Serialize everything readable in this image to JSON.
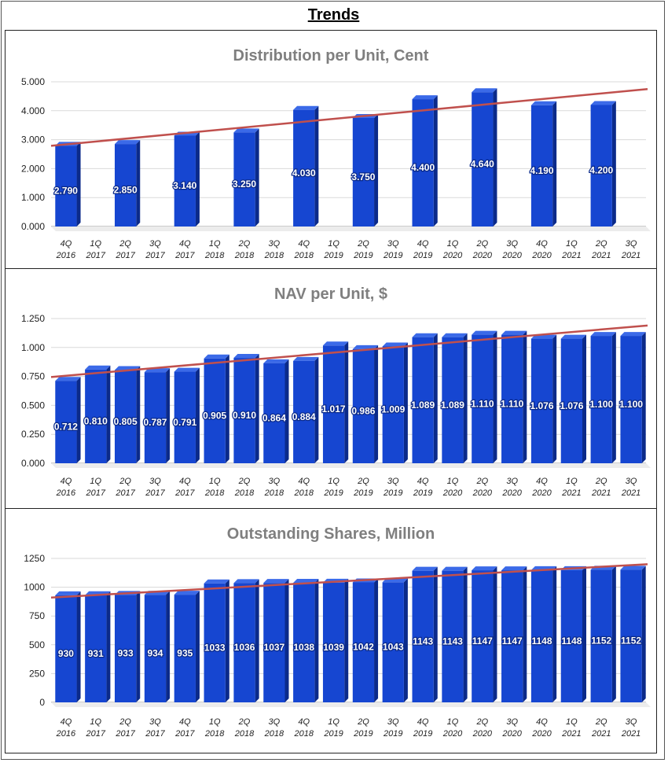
{
  "page": {
    "title": "Trends"
  },
  "chart_data": [
    {
      "type": "bar",
      "title": "Distribution per Unit, Cent",
      "categories": [
        [
          "4Q",
          "2016"
        ],
        [
          "1Q",
          "2017"
        ],
        [
          "2Q",
          "2017"
        ],
        [
          "3Q",
          "2017"
        ],
        [
          "4Q",
          "2017"
        ],
        [
          "1Q",
          "2018"
        ],
        [
          "2Q",
          "2018"
        ],
        [
          "3Q",
          "2018"
        ],
        [
          "4Q",
          "2018"
        ],
        [
          "1Q",
          "2019"
        ],
        [
          "2Q",
          "2019"
        ],
        [
          "3Q",
          "2019"
        ],
        [
          "4Q",
          "2019"
        ],
        [
          "1Q",
          "2020"
        ],
        [
          "2Q",
          "2020"
        ],
        [
          "3Q",
          "2020"
        ],
        [
          "4Q",
          "2020"
        ],
        [
          "1Q",
          "2021"
        ],
        [
          "2Q",
          "2021"
        ],
        [
          "3Q",
          "2021"
        ]
      ],
      "values": [
        2.79,
        null,
        2.85,
        null,
        3.14,
        null,
        3.25,
        null,
        4.03,
        null,
        3.75,
        null,
        4.4,
        null,
        4.64,
        null,
        4.19,
        null,
        4.2,
        null
      ],
      "data_labels": [
        "2.790",
        "",
        "2.850",
        "",
        "3.140",
        "",
        "3.250",
        "",
        "4.030",
        "",
        "3.750",
        "",
        "4.400",
        "",
        "4.640",
        "",
        "4.190",
        "",
        "4.200",
        ""
      ],
      "yticks": [
        "0.000",
        "1.000",
        "2.000",
        "3.000",
        "4.000",
        "5.000"
      ],
      "ylim": [
        0,
        5
      ],
      "trendline": [
        2.79,
        4.75
      ],
      "colors": {
        "bar": "#1646d1",
        "bar_side": "#0b2a8a",
        "bar_top": "#3b6ae8",
        "trend": "#c0504d"
      }
    },
    {
      "type": "bar",
      "title": "NAV per Unit, $",
      "categories": [
        [
          "4Q",
          "2016"
        ],
        [
          "1Q",
          "2017"
        ],
        [
          "2Q",
          "2017"
        ],
        [
          "3Q",
          "2017"
        ],
        [
          "4Q",
          "2017"
        ],
        [
          "1Q",
          "2018"
        ],
        [
          "2Q",
          "2018"
        ],
        [
          "3Q",
          "2018"
        ],
        [
          "4Q",
          "2018"
        ],
        [
          "1Q",
          "2019"
        ],
        [
          "2Q",
          "2019"
        ],
        [
          "3Q",
          "2019"
        ],
        [
          "4Q",
          "2019"
        ],
        [
          "1Q",
          "2020"
        ],
        [
          "2Q",
          "2020"
        ],
        [
          "3Q",
          "2020"
        ],
        [
          "4Q",
          "2020"
        ],
        [
          "1Q",
          "2021"
        ],
        [
          "2Q",
          "2021"
        ],
        [
          "3Q",
          "2021"
        ]
      ],
      "values": [
        0.712,
        0.81,
        0.805,
        0.787,
        0.791,
        0.905,
        0.91,
        0.864,
        0.884,
        1.017,
        0.986,
        1.009,
        1.089,
        1.089,
        1.11,
        1.11,
        1.076,
        1.076,
        1.1,
        1.1
      ],
      "data_labels": [
        "0.712",
        "0.810",
        "0.805",
        "0.787",
        "0.791",
        "0.905",
        "0.910",
        "0.864",
        "0.884",
        "1.017",
        "0.986",
        "1.009",
        "1.089",
        "1.089",
        "1.110",
        "1.110",
        "1.076",
        "1.076",
        "1.100",
        "1.100"
      ],
      "yticks": [
        "0.000",
        "0.250",
        "0.500",
        "0.750",
        "1.000",
        "1.250"
      ],
      "ylim": [
        0,
        1.25
      ],
      "trendline": [
        0.745,
        1.19
      ],
      "colors": {
        "bar": "#1646d1",
        "bar_side": "#0b2a8a",
        "bar_top": "#3b6ae8",
        "trend": "#c0504d"
      }
    },
    {
      "type": "bar",
      "title": "Outstanding Shares, Million",
      "categories": [
        [
          "4Q",
          "2016"
        ],
        [
          "1Q",
          "2017"
        ],
        [
          "2Q",
          "2017"
        ],
        [
          "3Q",
          "2017"
        ],
        [
          "4Q",
          "2017"
        ],
        [
          "1Q",
          "2018"
        ],
        [
          "2Q",
          "2018"
        ],
        [
          "3Q",
          "2018"
        ],
        [
          "4Q",
          "2018"
        ],
        [
          "1Q",
          "2019"
        ],
        [
          "2Q",
          "2019"
        ],
        [
          "3Q",
          "2019"
        ],
        [
          "4Q",
          "2019"
        ],
        [
          "1Q",
          "2020"
        ],
        [
          "2Q",
          "2020"
        ],
        [
          "3Q",
          "2020"
        ],
        [
          "4Q",
          "2020"
        ],
        [
          "1Q",
          "2021"
        ],
        [
          "2Q",
          "2021"
        ],
        [
          "3Q",
          "2021"
        ]
      ],
      "values": [
        930,
        931,
        933,
        934,
        935,
        1033,
        1036,
        1037,
        1038,
        1039,
        1042,
        1043,
        1143,
        1143,
        1147,
        1147,
        1148,
        1148,
        1152,
        1152
      ],
      "data_labels": [
        "930",
        "931",
        "933",
        "934",
        "935",
        "1033",
        "1036",
        "1037",
        "1038",
        "1039",
        "1042",
        "1043",
        "1143",
        "1143",
        "1147",
        "1147",
        "1148",
        "1148",
        "1152",
        "1152"
      ],
      "yticks": [
        "0",
        "250",
        "500",
        "750",
        "1000",
        "1250"
      ],
      "ylim": [
        0,
        1250
      ],
      "trendline": [
        910,
        1200
      ],
      "colors": {
        "bar": "#1646d1",
        "bar_side": "#0b2a8a",
        "bar_top": "#3b6ae8",
        "trend": "#c0504d"
      }
    }
  ]
}
